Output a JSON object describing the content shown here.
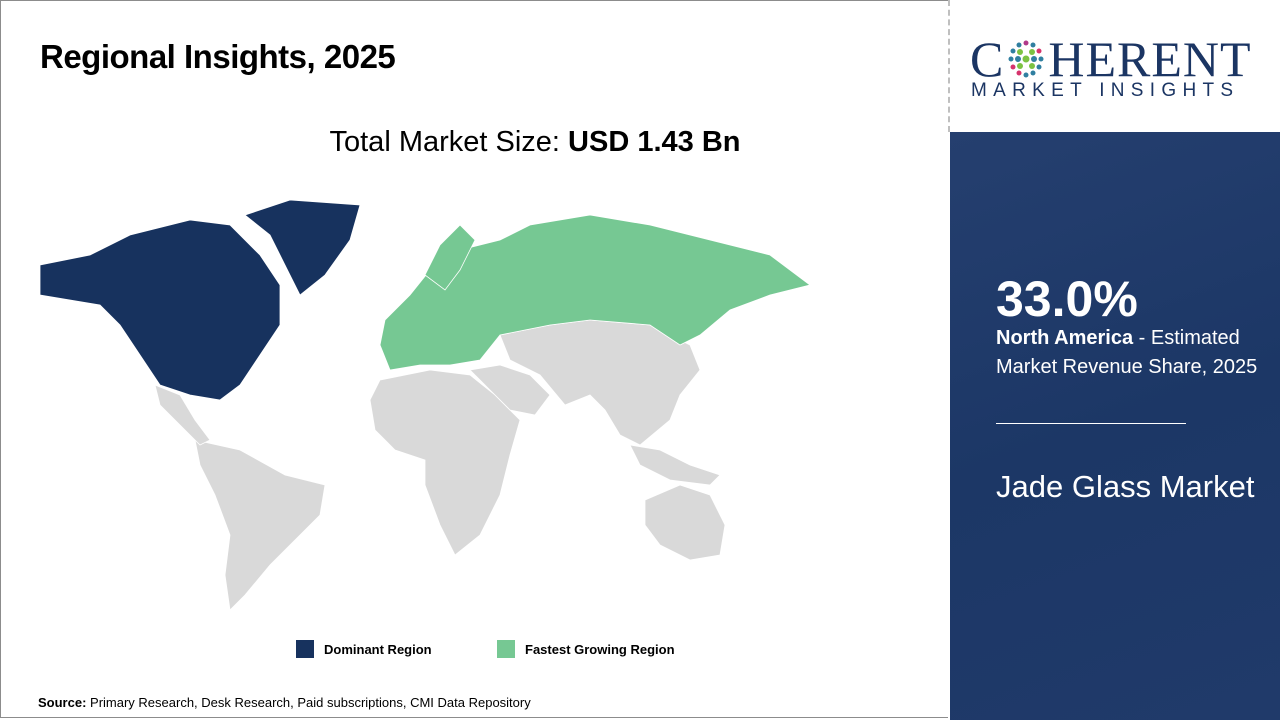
{
  "header": {
    "title": "Regional Insights, 2025"
  },
  "total": {
    "label": "Total Market Size: ",
    "value": "USD 1.43 Bn"
  },
  "legend": [
    {
      "label": "Dominant Region",
      "color": "#17325e"
    },
    {
      "label": "Fastest Growing Region",
      "color": "#76c893"
    }
  ],
  "map": {
    "dominant": "North America",
    "fastest_growing": "Europe",
    "other_color": "#d9d9d9"
  },
  "source": {
    "label": "Source:",
    "text": " Primary Research, Desk Research, Paid subscriptions, CMI Data Repository"
  },
  "logo": {
    "main_c": "C",
    "main_rest": "HERENT",
    "sub": "MARKET INSIGHTS",
    "text": "COHERENT MARKET INSIGHTS"
  },
  "panel": {
    "percent": "33.0%",
    "region": "North America",
    "desc": " - Estimated Market Revenue Share, 2025",
    "market": "Jade Glass Market"
  }
}
